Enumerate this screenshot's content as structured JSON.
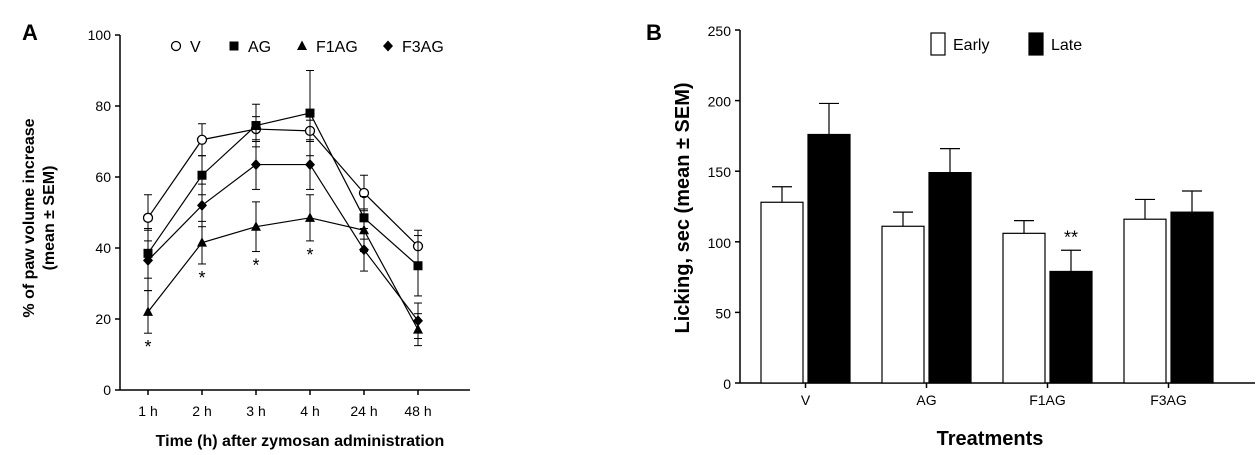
{
  "chart_data": [
    {
      "panel": "A",
      "type": "line",
      "categories": [
        "1 h",
        "2 h",
        "3 h",
        "4 h",
        "24 h",
        "48 h"
      ],
      "xlabel": "Time (h) after zymosan administration",
      "ylabel": "% of paw volume increase",
      "ylabel_line2": "(mean ± SEM)",
      "ylim": [
        0,
        100
      ],
      "yticks": [
        0,
        20,
        40,
        60,
        80,
        100
      ],
      "yticks_labels": [
        "0",
        "20",
        "40",
        "60",
        "80",
        "100"
      ],
      "legend_position": "top",
      "grid": false,
      "series": [
        {
          "name": "V",
          "marker": "circle-open",
          "values": [
            48.5,
            70.5,
            73.5,
            73,
            55.5,
            40.5
          ],
          "errors": [
            6.5,
            4.5,
            3.5,
            3,
            5,
            4.5
          ]
        },
        {
          "name": "AG",
          "marker": "square",
          "values": [
            38.5,
            60.5,
            74.5,
            78,
            48.5,
            35
          ],
          "errors": [
            7,
            5.5,
            6,
            12,
            6,
            8.5
          ]
        },
        {
          "name": "F1AG",
          "marker": "triangle",
          "values": [
            22,
            41.5,
            46,
            48.5,
            45,
            17
          ],
          "errors": [
            6,
            6,
            7,
            6.5,
            6,
            4.5
          ]
        },
        {
          "name": "F3AG",
          "marker": "diamond",
          "values": [
            36.5,
            52,
            63.5,
            63.5,
            39.5,
            19.5
          ],
          "errors": [
            8.5,
            6,
            7,
            7,
            6,
            5
          ]
        }
      ],
      "annotations": [
        {
          "category_index": 0,
          "text": "*"
        },
        {
          "category_index": 1,
          "text": "*"
        },
        {
          "category_index": 2,
          "text": "*"
        },
        {
          "category_index": 3,
          "text": "*"
        }
      ]
    },
    {
      "panel": "B",
      "type": "bar",
      "categories": [
        "V",
        "AG",
        "F1AG",
        "F3AG"
      ],
      "xlabel": "Treatments",
      "ylabel": "Licking, sec (mean ± SEM)",
      "ylim": [
        0,
        250
      ],
      "yticks": [
        0,
        50,
        100,
        150,
        200,
        250
      ],
      "yticks_labels": [
        "0",
        "50",
        "100",
        "150",
        "200",
        "250"
      ],
      "legend_position": "top",
      "grid": false,
      "series": [
        {
          "name": "Early",
          "fill": "#ffffff",
          "values": [
            128,
            111,
            106,
            116
          ],
          "errors": [
            11,
            10,
            9,
            14
          ]
        },
        {
          "name": "Late",
          "fill": "#000000",
          "values": [
            176,
            149,
            79,
            121
          ],
          "errors": [
            22,
            17,
            15,
            15
          ]
        }
      ],
      "annotations": [
        {
          "category_index": 2,
          "series": "Late",
          "text": "**"
        }
      ]
    }
  ]
}
